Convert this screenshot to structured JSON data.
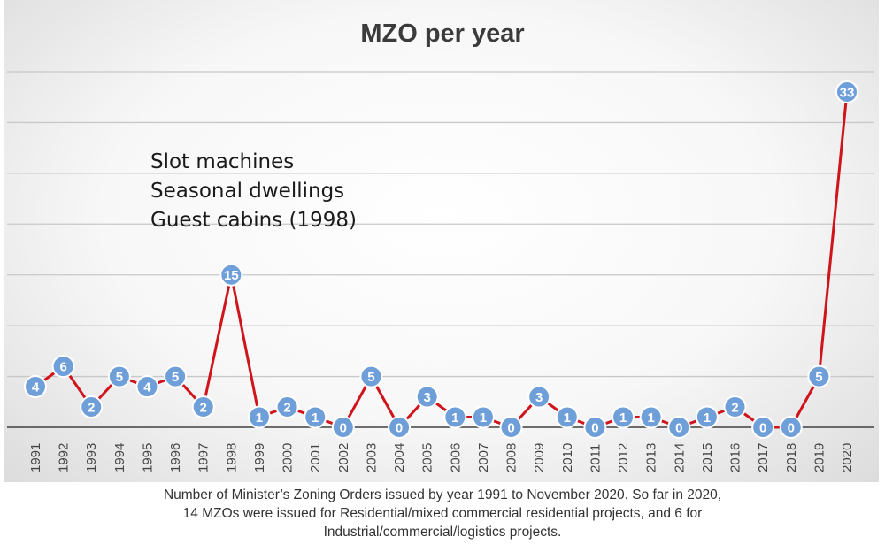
{
  "chart_data": {
    "type": "line",
    "title": "MZO per year",
    "annotations": [
      "Slot machines",
      "Seasonal dwellings",
      "Guest cabins (1998)"
    ],
    "x": [
      "1991",
      "1992",
      "1993",
      "1994",
      "1995",
      "1996",
      "1997",
      "1998",
      "1999",
      "2000",
      "2001",
      "2002",
      "2003",
      "2004",
      "2005",
      "2006",
      "2007",
      "2008",
      "2009",
      "2010",
      "2011",
      "2012",
      "2013",
      "2014",
      "2015",
      "2016",
      "2017",
      "2018",
      "2019",
      "2020"
    ],
    "values": [
      4,
      6,
      2,
      5,
      4,
      5,
      2,
      15,
      1,
      2,
      1,
      0,
      5,
      0,
      3,
      1,
      1,
      0,
      3,
      1,
      0,
      1,
      1,
      0,
      1,
      2,
      0,
      0,
      5,
      33
    ],
    "ylim": [
      0,
      35
    ],
    "grid": true,
    "legend": "none",
    "colors": {
      "line": "#d0141c",
      "marker": "#6f9fd8",
      "marker_stroke": "#ffffff",
      "grid": "#c8c8c8",
      "axis": "#404040"
    }
  },
  "caption": [
    "Number of Minister’s Zoning Orders issued by year 1991 to November 2020. So far in 2020,",
    "14 MZOs were issued for Residential/mixed commercial residential projects, and 6 for",
    "Industrial/commercial/logistics projects."
  ]
}
